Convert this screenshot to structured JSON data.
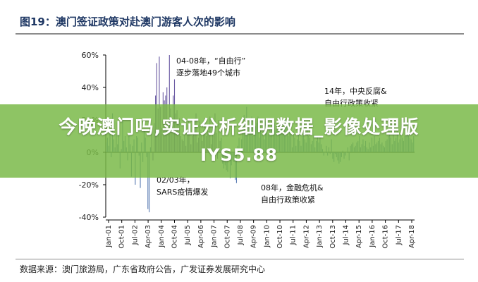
{
  "figure": {
    "title": "图19：澳门签证政策对赴澳门游客人次的影响",
    "source": "数据来源：澳门旅游局，广东省政府公告，广发证券发展研究中心"
  },
  "banner": {
    "line1": "今晚澳门吗,实证分析细明数据_影像处理版",
    "line2": "IYS5.88"
  },
  "colors": {
    "bar": "#5b7db4",
    "highlight_bar": "#6b5ba3",
    "axis": "#000000",
    "title": "#1f3864",
    "banner": "#78b946"
  },
  "chart_data": {
    "type": "bar",
    "ylim": [
      -40,
      60
    ],
    "yticks": [
      "60%",
      "40%",
      "20%",
      "0%",
      "-20%",
      "-40%"
    ],
    "ytick_values": [
      60,
      40,
      20,
      0,
      -20,
      -40
    ],
    "xticks": [
      "Jan-01",
      "Oct-01",
      "Jul-02",
      "Apr-03",
      "Jan-04",
      "Oct-04",
      "Jul-05",
      "Apr-06",
      "Jan-07",
      "Oct-07",
      "Jul-08",
      "Apr-09",
      "Jan-10",
      "Oct-10",
      "Jul-11",
      "Apr-12",
      "Jan-13",
      "Oct-13",
      "Jul-14",
      "Apr-15",
      "Jan-16",
      "Oct-16",
      "Jul-17",
      "Apr-18"
    ],
    "annotations": [
      {
        "id": "ivs-2003",
        "lines": [
          "04-08年，“自由行”",
          "逐步落地49个城市"
        ]
      },
      {
        "id": "sars",
        "lines": [
          "02/03年，",
          "SARS疫情爆发"
        ]
      },
      {
        "id": "crisis-2008",
        "lines": [
          "08年，金融危机&",
          "自由行政策收紧"
        ]
      },
      {
        "id": "anticorruption",
        "lines": [
          "14年，中央反腐&",
          "自由行政策收紧"
        ]
      }
    ],
    "values": [
      6,
      9,
      4,
      13,
      -3,
      24,
      8,
      3,
      11,
      5,
      16,
      -10,
      2,
      21,
      7,
      10,
      3,
      -5,
      10,
      5,
      -15,
      4,
      8,
      -20,
      10,
      9,
      -2,
      -22,
      6,
      -6,
      14,
      9,
      -3,
      -35,
      -37,
      3,
      13,
      -5,
      18,
      35,
      55,
      27,
      59,
      28,
      15,
      37,
      32,
      35,
      40,
      17,
      60,
      27,
      20,
      35,
      45,
      24,
      26,
      20,
      21,
      10,
      8,
      7,
      16,
      4,
      13,
      20,
      14,
      5,
      10,
      18,
      21,
      24,
      6,
      9,
      19,
      12,
      7,
      14,
      21,
      10,
      17,
      13,
      22,
      5,
      16,
      10,
      24,
      12,
      -4,
      20,
      7,
      9,
      -7,
      -10,
      -8,
      -11,
      -12,
      2,
      -16,
      -8,
      -5,
      -6,
      -17,
      -19,
      4,
      9,
      -2,
      8,
      15,
      23,
      18,
      28,
      16,
      21,
      15,
      22,
      10,
      12,
      16,
      18,
      22,
      9,
      14,
      12,
      20,
      8,
      19,
      13,
      11,
      15,
      13,
      19,
      15,
      18,
      14,
      15,
      14,
      16,
      12,
      17,
      13,
      15,
      20,
      16,
      10,
      20,
      12,
      3,
      13,
      9,
      4,
      8,
      16,
      7,
      4,
      10,
      12,
      8,
      6,
      14,
      10,
      9,
      5,
      7,
      11,
      3,
      7,
      10,
      6,
      9,
      5,
      2,
      -2,
      0,
      4,
      -2,
      3,
      -1,
      8,
      -4,
      -6,
      -1,
      -3,
      -5,
      -7,
      -6,
      -3,
      1,
      -4,
      -2,
      0,
      3,
      -5,
      4,
      5,
      6,
      3,
      4,
      6,
      7,
      10,
      3,
      5,
      8,
      4,
      7,
      3,
      2,
      6,
      3,
      9,
      4,
      10,
      5,
      6,
      7,
      9,
      5,
      6,
      4,
      3,
      7,
      8,
      10,
      12,
      9,
      5,
      12,
      7,
      9,
      13,
      6,
      8,
      11,
      9,
      7,
      10,
      12,
      13,
      11,
      9,
      8,
      6,
      10
    ]
  }
}
